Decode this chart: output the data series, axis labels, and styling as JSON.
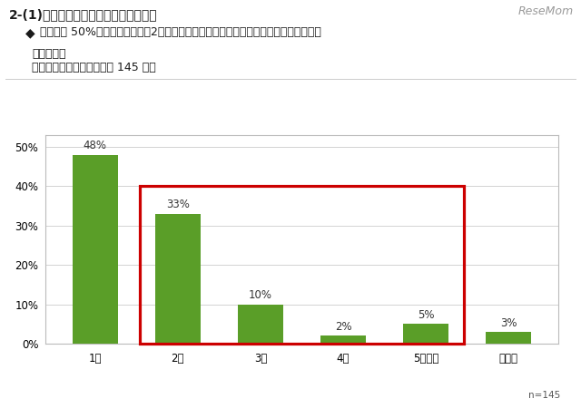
{
  "categories": [
    "1台",
    "2台",
    "3台",
    "4台",
    "5台以上",
    "無回答"
  ],
  "values": [
    48,
    33,
    10,
    2,
    5,
    3
  ],
  "bar_color": "#5a9e28",
  "background_color": "#ffffff",
  "chart_bg_color": "#ffffff",
  "chart_border_color": "#bbbbbb",
  "grid_color": "#cccccc",
  "ylim": [
    0,
    53
  ],
  "yticks": [
    0,
    10,
    20,
    30,
    40,
    50
  ],
  "ytick_labels": [
    "0%",
    "10%",
    "20%",
    "30%",
    "40%",
    "50%"
  ],
  "title_line1": "2-(1)　家庭におけるパソコン所有台数",
  "bullet_char": "◆",
  "bullet_text": "回答者の 50%は、家庭において2台以上のパソコンを所有している結果となりました。",
  "note1": "・単一回答",
  "note2": "・全員への質問（有効回答 145 人）",
  "n_label": "n=145",
  "resemom_text": "ReseMom",
  "red_box_color": "#cc0000"
}
